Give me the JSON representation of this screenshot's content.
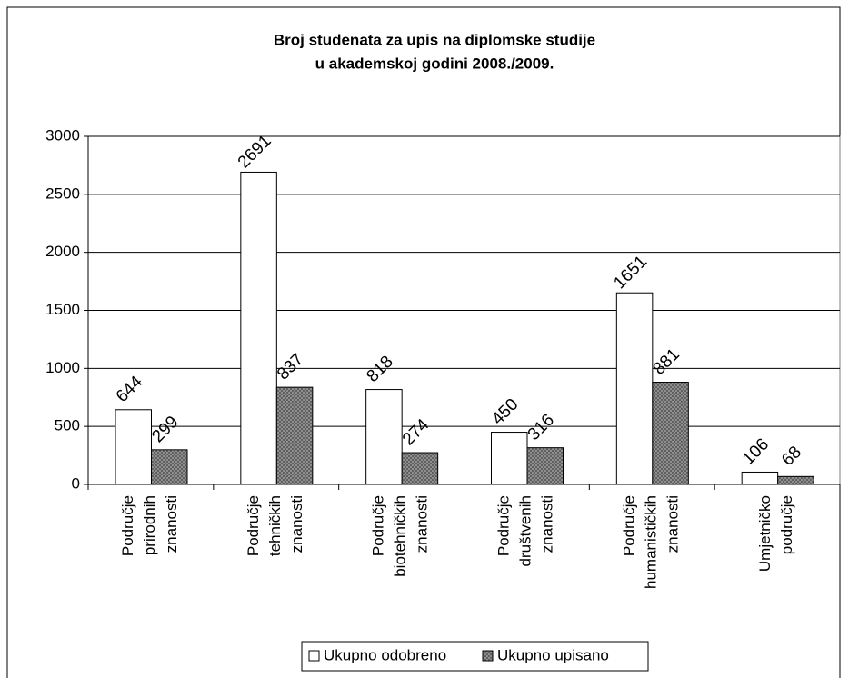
{
  "chart_data": {
    "type": "bar",
    "title": [
      "Broj studenata za upis na diplomske studije",
      "u akademskoj godini 2008./2009."
    ],
    "categories": [
      "Područje prirodnih znanosti",
      "Područje tehničkih znanosti",
      "Područje biotehničkih znanosti",
      "Područje društvenih znanosti",
      "Područje humanističkih znanosti",
      "Umjetničko područje"
    ],
    "series": [
      {
        "name": "Ukupno odobreno",
        "color": "#ffffff",
        "values": [
          644,
          2691,
          818,
          450,
          1651,
          106
        ]
      },
      {
        "name": "Ukupno upisano",
        "color": "#9a9a9a",
        "values": [
          299,
          837,
          274,
          316,
          881,
          68
        ]
      }
    ],
    "ylim": [
      0,
      3000
    ],
    "yticks": [
      0,
      500,
      1000,
      1500,
      2000,
      2500,
      3000
    ],
    "grid": true,
    "legend": "bottom"
  }
}
